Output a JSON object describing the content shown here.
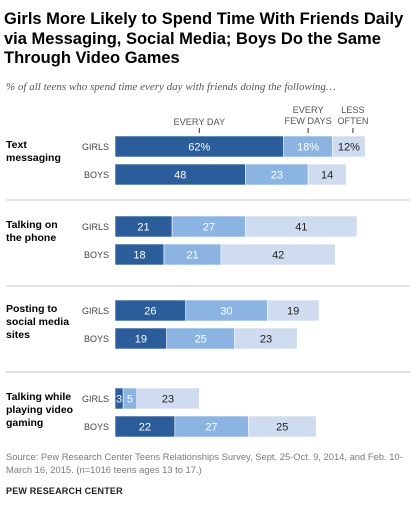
{
  "title": "Girls More Likely to Spend Time With Friends Daily via Messaging, Social Media; Boys Do the Same Through Video Games",
  "subtitle": "% of all teens who spend time every day with friends doing the following…",
  "source": "Source: Pew Research Center Teens Relationships Survey, Sept. 25-Oct. 9, 2014, and Feb. 10-March 16, 2015. (n=1016 teens ages 13 to 17.)",
  "footer": "PEW RESEARCH CENTER",
  "colors": {
    "every_day": "#2b5d9b",
    "every_few_days": "#8cb4e2",
    "less_often": "#cfdcf0",
    "divider": "#c8c8c8"
  },
  "chart_data": {
    "type": "bar",
    "orientation": "horizontal",
    "stacked": true,
    "series_names": [
      "EVERY DAY",
      "EVERY FEW DAYS",
      "LESS OFTEN"
    ],
    "value_labels_percent_first_row": true,
    "categories": [
      {
        "label": "Text messaging",
        "label_lines": [
          "Text",
          "messaging"
        ],
        "rows": [
          {
            "group": "GIRLS",
            "values": [
              62,
              18,
              12
            ]
          },
          {
            "group": "BOYS",
            "values": [
              48,
              23,
              14
            ]
          }
        ]
      },
      {
        "label": "Talking on the phone",
        "label_lines": [
          "Talking on",
          "the phone"
        ],
        "rows": [
          {
            "group": "GIRLS",
            "values": [
              21,
              27,
              41
            ]
          },
          {
            "group": "BOYS",
            "values": [
              18,
              21,
              42
            ]
          }
        ]
      },
      {
        "label": "Posting to social media sites",
        "label_lines": [
          "Posting to",
          "social media",
          "sites"
        ],
        "rows": [
          {
            "group": "GIRLS",
            "values": [
              26,
              30,
              19
            ]
          },
          {
            "group": "BOYS",
            "values": [
              19,
              25,
              23
            ]
          }
        ]
      },
      {
        "label": "Talking while playing video gaming",
        "label_lines": [
          "Talking while",
          "playing video",
          "gaming"
        ],
        "rows": [
          {
            "group": "GIRLS",
            "values": [
              3,
              5,
              23
            ]
          },
          {
            "group": "BOYS",
            "values": [
              22,
              27,
              25
            ]
          }
        ]
      }
    ]
  }
}
